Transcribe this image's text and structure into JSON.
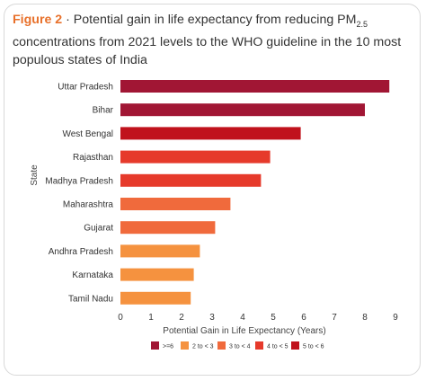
{
  "figure": {
    "label": "Figure 2",
    "separator": " · ",
    "title_main": "Potential gain in life expectancy from reducing PM",
    "title_sub": "2.5",
    "title_rest": " concentrations from 2021 levels to the WHO guideline in the 10 most populous states of India"
  },
  "colors": {
    "ge6": "#a11634",
    "c5to6": "#c0121c",
    "c4to5": "#e63a2b",
    "c3to4": "#f06a3c",
    "c2to3": "#f5923f",
    "title_accent": "#e8702a"
  },
  "chart_data": {
    "type": "bar",
    "orientation": "horizontal",
    "categories": [
      "Uttar Pradesh",
      "Bihar",
      "West Bengal",
      "Rajasthan",
      "Madhya Pradesh",
      "Maharashtra",
      "Gujarat",
      "Andhra Pradesh",
      "Karnataka",
      "Tamil Nadu"
    ],
    "values": [
      8.8,
      8.0,
      5.9,
      4.9,
      4.6,
      3.6,
      3.1,
      2.6,
      2.4,
      2.3
    ],
    "bar_classes": [
      "ge6",
      "ge6",
      "c5to6",
      "c4to5",
      "c4to5",
      "c3to4",
      "c3to4",
      "c2to3",
      "c2to3",
      "c2to3"
    ],
    "xlabel": "Potential Gain in Life Expectancy (Years)",
    "ylabel": "State",
    "xlim": [
      0,
      9
    ],
    "xticks": [
      "0",
      "1",
      "2",
      "3",
      "4",
      "5",
      "6",
      "7",
      "8",
      "9"
    ],
    "grid": false,
    "legend_position": "bottom",
    "legend": [
      {
        "label": ">=6",
        "class": "ge6"
      },
      {
        "label": "2 to < 3",
        "class": "c2to3"
      },
      {
        "label": "3 to < 4",
        "class": "c3to4"
      },
      {
        "label": "4 to < 5",
        "class": "c4to5"
      },
      {
        "label": "5 to < 6",
        "class": "c5to6"
      }
    ]
  }
}
